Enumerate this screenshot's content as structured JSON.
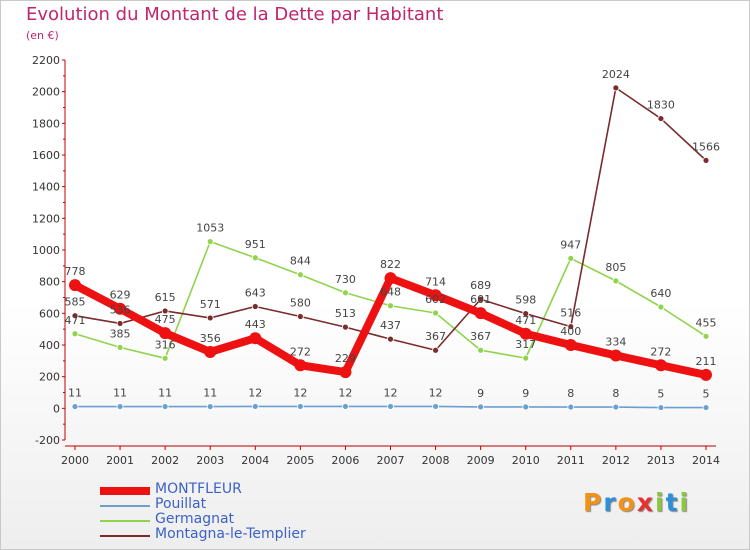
{
  "header": {
    "title": "Evolution du Montant de la Dette par Habitant",
    "subtitle": "(en €)"
  },
  "logo": {
    "text": "Proxiti",
    "colors": [
      "#f29318",
      "#2e8fd6",
      "#f29318",
      "#e8312f",
      "#8ec63f",
      "#2e8fd6",
      "#8ec63f"
    ]
  },
  "chart_data": {
    "type": "line",
    "title": "Evolution du Montant de la Dette par Habitant",
    "subtitle": "(en €)",
    "xlabel": "",
    "ylabel": "",
    "ylim": [
      -200,
      2200
    ],
    "yticks": [
      -200,
      0,
      200,
      400,
      600,
      800,
      1000,
      1200,
      1400,
      1600,
      1800,
      2000,
      2200
    ],
    "grid": false,
    "legend_position": "bottom-left",
    "categories": [
      "2000",
      "2001",
      "2002",
      "2003",
      "2004",
      "2005",
      "2006",
      "2007",
      "2008",
      "2009",
      "2010",
      "2011",
      "2012",
      "2013",
      "2014"
    ],
    "series": [
      {
        "name": "MONTFLEUR",
        "color": "#ee1111",
        "values": [
          778,
          629,
          475,
          356,
          443,
          272,
          229,
          822,
          714,
          601,
          471,
          400,
          334,
          272,
          211
        ],
        "labels": [
          "778",
          "629",
          "475",
          "356",
          "443",
          "272",
          "229",
          "822",
          "714",
          "601",
          "471",
          "400",
          "334",
          "272",
          "211"
        ]
      },
      {
        "name": "Pouillat",
        "color": "#6a9fd0",
        "values": [
          11,
          11,
          11,
          11,
          12,
          12,
          12,
          12,
          12,
          9,
          9,
          8,
          8,
          5,
          5
        ],
        "labels": [
          "11",
          "11",
          "11",
          "11",
          "12",
          "12",
          "12",
          "12",
          "12",
          "9",
          "9",
          "8",
          "8",
          "5",
          "5"
        ]
      },
      {
        "name": "Germagnat",
        "color": "#8fd44c",
        "values": [
          471,
          385,
          316,
          1053,
          951,
          844,
          730,
          648,
          602,
          367,
          317,
          947,
          805,
          640,
          455
        ],
        "labels": [
          "471",
          "385",
          "316",
          "1053",
          "951",
          "844",
          "730",
          "648",
          "602",
          "367",
          "317",
          "947",
          "805",
          "640",
          "455"
        ]
      },
      {
        "name": "Montagna-le-Templier",
        "color": "#7a2c2c",
        "values": [
          585,
          536,
          615,
          571,
          643,
          580,
          513,
          437,
          367,
          689,
          598,
          516,
          2024,
          1830,
          1566
        ],
        "labels": [
          "585",
          "536",
          "615",
          "571",
          "643",
          "580",
          "513",
          "437",
          "367",
          "689",
          "598",
          "516",
          "2024",
          "1830",
          "1566"
        ]
      }
    ]
  }
}
